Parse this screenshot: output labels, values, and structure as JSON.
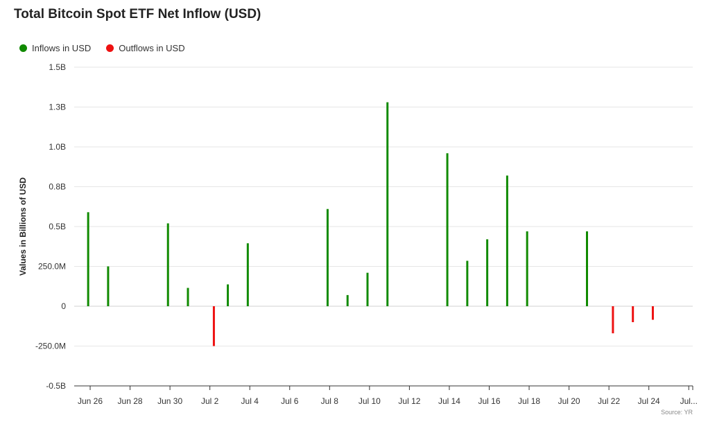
{
  "chart_data": {
    "type": "bar",
    "title": "Total Bitcoin Spot ETF Net Inflow (USD)",
    "ylabel": "Values in Billions of USD",
    "xlabel": "",
    "ylim": [
      -0.5,
      1.5
    ],
    "y_ticks": [
      {
        "value": 1.5,
        "label": "1.5B"
      },
      {
        "value": 1.25,
        "label": "1.3B"
      },
      {
        "value": 1.0,
        "label": "1.0B"
      },
      {
        "value": 0.75,
        "label": "0.8B"
      },
      {
        "value": 0.5,
        "label": "0.5B"
      },
      {
        "value": 0.25,
        "label": "250.0M"
      },
      {
        "value": 0,
        "label": "0"
      },
      {
        "value": -0.25,
        "label": "-250.0M"
      },
      {
        "value": -0.5,
        "label": "-0.5B"
      }
    ],
    "x_range_days": [
      -0.8,
      30.2
    ],
    "x_ticks": [
      {
        "day": 0,
        "label": "Jun 26"
      },
      {
        "day": 2,
        "label": "Jun 28"
      },
      {
        "day": 4,
        "label": "Jun 30"
      },
      {
        "day": 6,
        "label": "Jul 2"
      },
      {
        "day": 8,
        "label": "Jul 4"
      },
      {
        "day": 10,
        "label": "Jul 6"
      },
      {
        "day": 12,
        "label": "Jul 8"
      },
      {
        "day": 14,
        "label": "Jul 10"
      },
      {
        "day": 16,
        "label": "Jul 12"
      },
      {
        "day": 18,
        "label": "Jul 14"
      },
      {
        "day": 20,
        "label": "Jul 16"
      },
      {
        "day": 22,
        "label": "Jul 18"
      },
      {
        "day": 24,
        "label": "Jul 20"
      },
      {
        "day": 26,
        "label": "Jul 22"
      },
      {
        "day": 28,
        "label": "Jul 24"
      },
      {
        "day": 30,
        "label": "Jul..."
      }
    ],
    "series": [
      {
        "name": "Inflows in USD",
        "color": "#108a00",
        "points": [
          {
            "day": -0.1,
            "value": 0.59
          },
          {
            "day": 0.9,
            "value": 0.25
          },
          {
            "day": 3.9,
            "value": 0.52
          },
          {
            "day": 4.9,
            "value": 0.115
          },
          {
            "day": 6.9,
            "value": 0.137
          },
          {
            "day": 7.9,
            "value": 0.395
          },
          {
            "day": 11.9,
            "value": 0.61
          },
          {
            "day": 12.9,
            "value": 0.07
          },
          {
            "day": 13.9,
            "value": 0.21
          },
          {
            "day": 14.9,
            "value": 1.28
          },
          {
            "day": 17.9,
            "value": 0.96
          },
          {
            "day": 18.9,
            "value": 0.285
          },
          {
            "day": 19.9,
            "value": 0.42
          },
          {
            "day": 20.9,
            "value": 0.82
          },
          {
            "day": 21.9,
            "value": 0.47
          },
          {
            "day": 24.9,
            "value": 0.47
          }
        ]
      },
      {
        "name": "Outflows in USD",
        "color": "#ee1111",
        "points": [
          {
            "day": 6.2,
            "value": -0.25
          },
          {
            "day": 26.2,
            "value": -0.17
          },
          {
            "day": 27.2,
            "value": -0.1
          },
          {
            "day": 28.2,
            "value": -0.085
          }
        ]
      }
    ],
    "grid": true,
    "legend_position": "top-left",
    "source": "Source: YR"
  }
}
